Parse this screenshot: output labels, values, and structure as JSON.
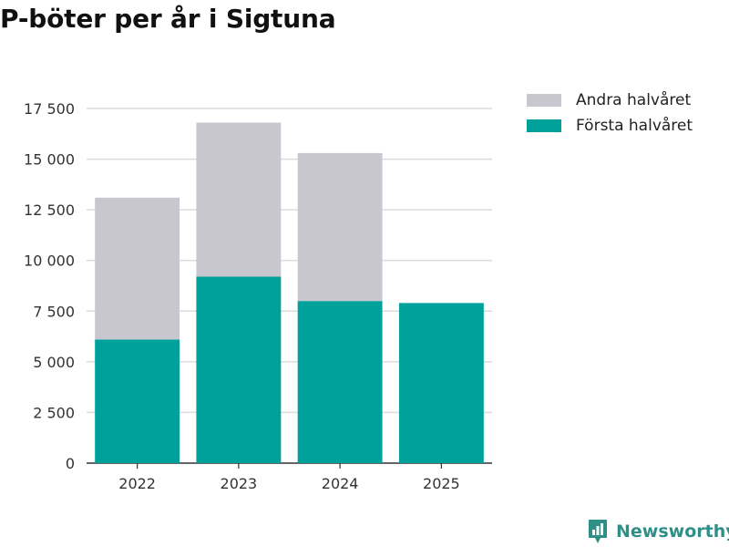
{
  "chart_data": {
    "type": "bar",
    "stacked": true,
    "title": "P-böter per år i Sigtuna",
    "categories": [
      "2022",
      "2023",
      "2024",
      "2025"
    ],
    "series": [
      {
        "name": "Första halvåret",
        "color": "#00a19a",
        "values": [
          6100,
          9200,
          8000,
          7900
        ]
      },
      {
        "name": "Andra halvåret",
        "color": "#c8c7cf",
        "values": [
          7000,
          7600,
          7300,
          0
        ]
      }
    ],
    "legend": [
      "Andra halvåret",
      "Första halvåret"
    ],
    "yticks": [
      "0",
      "2 500",
      "5 000",
      "7 500",
      "10 000",
      "12 500",
      "15 000",
      "17 500"
    ],
    "ylim": [
      0,
      17500
    ],
    "xlabel": "",
    "ylabel": "",
    "grid": true,
    "legend_position": "top-right"
  },
  "brand": {
    "name": "Newsworthy",
    "color": "#2f8f86"
  }
}
